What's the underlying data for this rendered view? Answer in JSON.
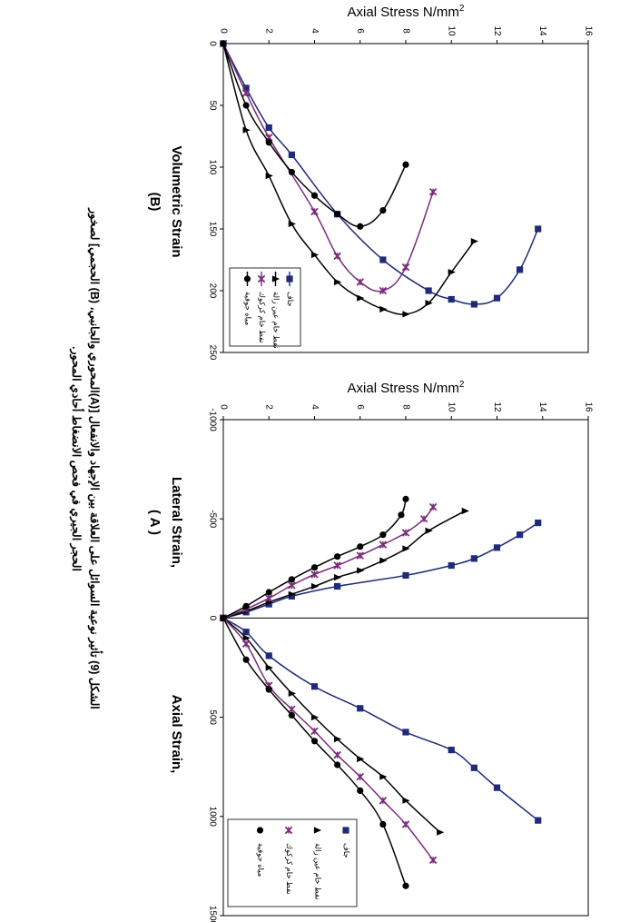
{
  "caption": {
    "line1": "الشكل (9) تأثير نوعية السوائل على العلاقة بين الإجهاد والانفعال [(A)المحوري والجانبي، (B) الحجمي] لصخور",
    "line2": "الحجر الجيري في فحص الانضغاط أحادي المحور."
  },
  "colors": {
    "dry": "#1f2a7a",
    "crude": "#000000",
    "kerosene": "#7b2c7b",
    "water": "#000000",
    "volumetric_water": "#000000",
    "axis": "#000000"
  },
  "chart_data": [
    {
      "type": "line",
      "panel_label": "(B)",
      "xlabel": "Volumetric Strain",
      "ylabel": "Axial Stress N/mm",
      "ylabel_sup": "2",
      "xlim": [
        0,
        250
      ],
      "ylim": [
        0,
        16
      ],
      "xticks": [
        "0",
        "50",
        "100",
        "150",
        "200",
        "250"
      ],
      "yticks": [
        "0",
        "2",
        "4",
        "6",
        "8",
        "10",
        "12",
        "14",
        "16"
      ],
      "grid": false,
      "legend_position": "bottom-right",
      "series": [
        {
          "name": "جاف",
          "marker": "square",
          "color": "dry",
          "x": [
            0,
            36,
            68,
            90,
            138,
            175,
            200,
            207,
            211,
            206,
            183,
            150
          ],
          "y": [
            0,
            1,
            2,
            3,
            5,
            7,
            9,
            10,
            11,
            12,
            13,
            13.8
          ]
        },
        {
          "name": "نفط خام عين زالة",
          "marker": "triangle",
          "color": "crude",
          "x": [
            0,
            70,
            107,
            146,
            171,
            193,
            206,
            215,
            219,
            210,
            185,
            160
          ],
          "y": [
            0,
            1,
            2,
            3,
            4,
            5,
            6,
            7,
            8,
            9,
            10,
            11
          ]
        },
        {
          "name": "نفط خام كركوك",
          "marker": "x",
          "color": "kerosene",
          "x": [
            0,
            40,
            76,
            136,
            172,
            193,
            200,
            181,
            120
          ],
          "y": [
            0,
            1,
            2,
            4,
            5,
            6,
            7,
            8,
            9.2
          ]
        },
        {
          "name": "مياه جوفية",
          "marker": "circle",
          "color": "water",
          "x": [
            0,
            50,
            80,
            104,
            123,
            138,
            148,
            135,
            98
          ],
          "y": [
            0,
            1,
            2,
            3,
            4,
            5,
            6,
            7,
            8
          ]
        }
      ]
    },
    {
      "type": "line",
      "panel_label": "( A )",
      "xlabel_left": "Lateral Strain,",
      "xlabel_right": "Axial Strain,",
      "ylabel": "Axial Stress N/mm",
      "ylabel_sup": "2",
      "xlim": [
        -1000,
        1500
      ],
      "ylim": [
        0,
        16
      ],
      "xticks": [
        "-1000",
        "-500",
        "0",
        "500",
        "1000",
        "1500"
      ],
      "yticks": [
        "0",
        "2",
        "4",
        "6",
        "8",
        "10",
        "12",
        "14",
        "16"
      ],
      "grid": false,
      "legend_position": "bottom-right",
      "series": [
        {
          "name": "جاف",
          "marker": "square",
          "color": "dry",
          "axial_x": [
            0,
            70,
            190,
            345,
            455,
            575,
            665,
            755,
            855,
            1020
          ],
          "axial_y": [
            0,
            1,
            2,
            4,
            6,
            8,
            10,
            11,
            12,
            13.8
          ],
          "lateral_x": [
            0,
            -30,
            -70,
            -110,
            -160,
            -215,
            -265,
            -300,
            -355,
            -420,
            -480
          ],
          "lateral_y": [
            0,
            1,
            2,
            3,
            5,
            8,
            10,
            11,
            12,
            13,
            13.8
          ]
        },
        {
          "name": "نفط خام عين زالة",
          "marker": "triangle",
          "color": "crude",
          "axial_x": [
            0,
            100,
            250,
            380,
            500,
            610,
            710,
            800,
            920,
            1080
          ],
          "axial_y": [
            0,
            1,
            2,
            3,
            4,
            5,
            6,
            7,
            8,
            9.5
          ],
          "lateral_x": [
            0,
            -35,
            -80,
            -120,
            -160,
            -205,
            -240,
            -290,
            -350,
            -440,
            -540
          ],
          "lateral_y": [
            0,
            1,
            2,
            3,
            4,
            5,
            6,
            7,
            8,
            9,
            10.6
          ]
        },
        {
          "name": "نفط خام كركوك",
          "marker": "x",
          "color": "kerosene",
          "axial_x": [
            0,
            130,
            340,
            460,
            570,
            690,
            800,
            920,
            1040,
            1220
          ],
          "axial_y": [
            0,
            1,
            2,
            3,
            4,
            5,
            6,
            7,
            8,
            9.2
          ],
          "lateral_x": [
            0,
            -45,
            -100,
            -165,
            -220,
            -265,
            -315,
            -370,
            -430,
            -500,
            -560
          ],
          "lateral_y": [
            0,
            1,
            2,
            3,
            4,
            5,
            6,
            7,
            8,
            8.8,
            9.2
          ]
        },
        {
          "name": "مياه جوفية",
          "marker": "circle",
          "color": "water",
          "axial_x": [
            0,
            210,
            360,
            490,
            620,
            740,
            870,
            1040,
            1350
          ],
          "axial_y": [
            0,
            1,
            2,
            3,
            4,
            5,
            6,
            7,
            8
          ],
          "lateral_x": [
            0,
            -60,
            -130,
            -195,
            -255,
            -310,
            -360,
            -420,
            -520,
            -600
          ],
          "lateral_y": [
            0,
            1,
            2,
            3,
            4,
            5,
            6,
            7,
            7.8,
            8
          ]
        }
      ]
    }
  ]
}
